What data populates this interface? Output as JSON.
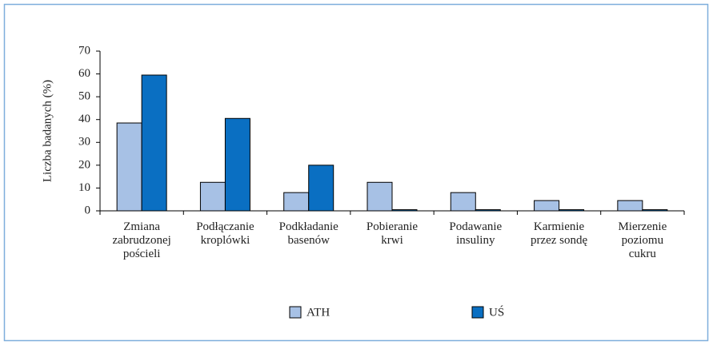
{
  "chart_data": {
    "type": "bar",
    "y_label": "Liczba badanych (%)",
    "categories": [
      [
        "Zmiana",
        "zabrudzonej",
        "pościeli"
      ],
      [
        "Podłączanie",
        "kroplówki"
      ],
      [
        "Podkładanie",
        "basenów"
      ],
      [
        "Pobieranie",
        "krwi"
      ],
      [
        "Podawanie",
        "insuliny"
      ],
      [
        "Karmienie",
        "przez sondę"
      ],
      [
        "Mierzenie",
        "poziomu",
        "cukru"
      ]
    ],
    "series": [
      {
        "name": "ATH",
        "color": "#a7c1e5",
        "values": [
          38.5,
          12.5,
          8,
          12.5,
          8,
          4.5,
          4.5
        ]
      },
      {
        "name": "UŚ",
        "color": "#0a6fc2",
        "values": [
          59.5,
          40.5,
          20,
          0.5,
          0.5,
          0.5,
          0.5
        ]
      }
    ],
    "ylim": [
      0,
      70
    ],
    "yticks": [
      0,
      10,
      20,
      30,
      40,
      50,
      60,
      70
    ],
    "grid": false,
    "legend": "bottom"
  }
}
